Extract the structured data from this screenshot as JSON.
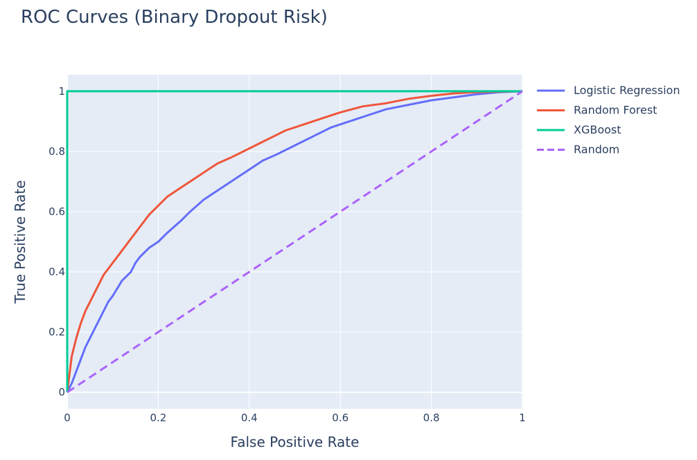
{
  "chart_data": {
    "type": "line",
    "title": "ROC Curves (Binary Dropout Risk)",
    "xlabel": "False Positive Rate",
    "ylabel": "True Positive Rate",
    "xlim": [
      0,
      1
    ],
    "ylim": [
      -0.055,
      1.055
    ],
    "x_ticks": [
      0,
      0.2,
      0.4,
      0.6,
      0.8,
      1
    ],
    "y_ticks": [
      0,
      0.2,
      0.4,
      0.6,
      0.8,
      1
    ],
    "x_tick_labels": [
      "0",
      "0.2",
      "0.4",
      "0.6",
      "0.8",
      "1"
    ],
    "y_tick_labels": [
      "0",
      "0.2",
      "0.4",
      "0.6",
      "0.8",
      "1"
    ],
    "grid": true,
    "legend_position": "right",
    "plot_background": "#e5ecf6",
    "series": [
      {
        "name": "Logistic Regression",
        "color": "#636efa",
        "dash": "solid",
        "x": [
          0,
          0.01,
          0.02,
          0.03,
          0.04,
          0.05,
          0.06,
          0.07,
          0.08,
          0.09,
          0.1,
          0.12,
          0.14,
          0.15,
          0.16,
          0.18,
          0.2,
          0.22,
          0.25,
          0.27,
          0.3,
          0.33,
          0.35,
          0.38,
          0.4,
          0.43,
          0.46,
          0.5,
          0.54,
          0.58,
          0.62,
          0.66,
          0.7,
          0.75,
          0.8,
          0.85,
          0.9,
          0.95,
          1
        ],
        "y": [
          0,
          0.03,
          0.07,
          0.11,
          0.15,
          0.18,
          0.21,
          0.24,
          0.27,
          0.3,
          0.32,
          0.37,
          0.4,
          0.43,
          0.45,
          0.48,
          0.5,
          0.53,
          0.57,
          0.6,
          0.64,
          0.67,
          0.69,
          0.72,
          0.74,
          0.77,
          0.79,
          0.82,
          0.85,
          0.88,
          0.9,
          0.92,
          0.94,
          0.955,
          0.97,
          0.98,
          0.99,
          0.997,
          1
        ]
      },
      {
        "name": "Random Forest",
        "color": "#ef553b",
        "dash": "solid",
        "x": [
          0,
          0.01,
          0.02,
          0.03,
          0.04,
          0.05,
          0.06,
          0.07,
          0.08,
          0.1,
          0.12,
          0.14,
          0.16,
          0.18,
          0.2,
          0.22,
          0.25,
          0.28,
          0.3,
          0.33,
          0.36,
          0.4,
          0.44,
          0.48,
          0.52,
          0.56,
          0.6,
          0.65,
          0.7,
          0.75,
          0.8,
          0.85,
          0.9,
          0.95,
          1
        ],
        "y": [
          0,
          0.12,
          0.18,
          0.23,
          0.27,
          0.3,
          0.33,
          0.36,
          0.39,
          0.43,
          0.47,
          0.51,
          0.55,
          0.59,
          0.62,
          0.65,
          0.68,
          0.71,
          0.73,
          0.76,
          0.78,
          0.81,
          0.84,
          0.87,
          0.89,
          0.91,
          0.93,
          0.95,
          0.96,
          0.975,
          0.985,
          0.993,
          0.997,
          0.999,
          1
        ]
      },
      {
        "name": "XGBoost",
        "color": "#00cc96",
        "dash": "solid",
        "x": [
          0,
          0,
          1
        ],
        "y": [
          0,
          1,
          1
        ]
      },
      {
        "name": "Random",
        "color": "#ab63fa",
        "dash": "dash",
        "x": [
          0,
          1
        ],
        "y": [
          0,
          1
        ]
      }
    ]
  }
}
